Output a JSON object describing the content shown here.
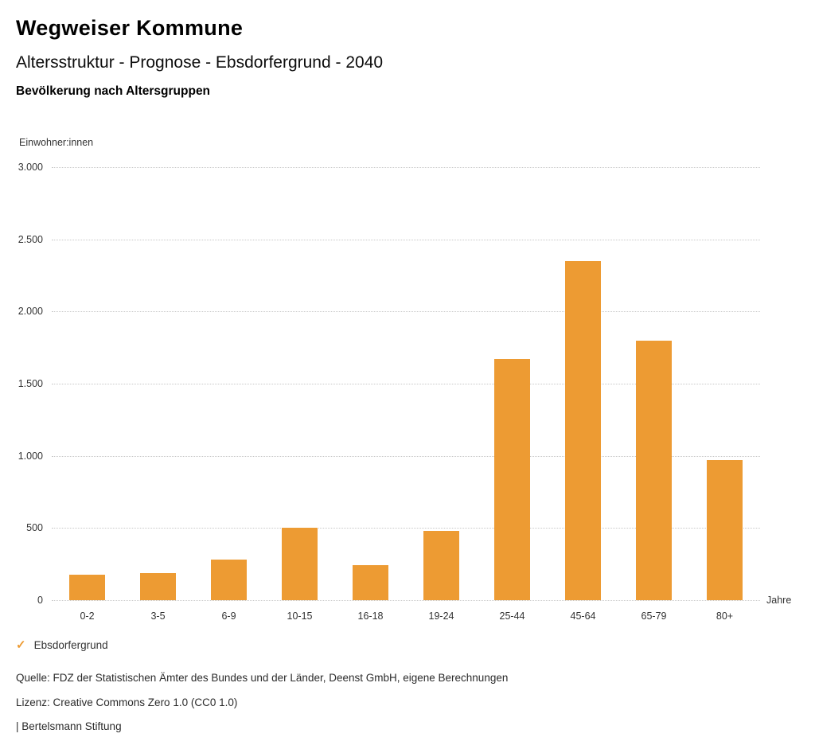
{
  "header": {
    "title": "Wegweiser Kommune",
    "subtitle": "Altersstruktur - Prognose - Ebsdorfergrund - 2040",
    "chart_heading": "Bevölkerung nach Altersgruppen"
  },
  "chart_data": {
    "type": "bar",
    "title": "Bevölkerung nach Altersgruppen",
    "y_axis_label": "Einwohner:innen",
    "x_axis_label": "Jahre",
    "categories": [
      "0-2",
      "3-5",
      "6-9",
      "10-15",
      "16-18",
      "19-24",
      "25-44",
      "45-64",
      "65-79",
      "80+"
    ],
    "series": [
      {
        "name": "Ebsdorfergrund",
        "values": [
          175,
          190,
          280,
          500,
          245,
          480,
          1670,
          2350,
          1800,
          970
        ]
      }
    ],
    "ylim": [
      0,
      3000
    ],
    "y_ticks": [
      0,
      500,
      1000,
      1500,
      2000,
      2500,
      3000
    ],
    "y_tick_labels": [
      "0",
      "500",
      "1.000",
      "1.500",
      "2.000",
      "2.500",
      "3.000"
    ],
    "bar_color": "#ED9B33",
    "grid": true,
    "legend_position": "bottom"
  },
  "legend": {
    "items": [
      {
        "label": "Ebsdorfergrund",
        "color": "#ED9B33",
        "marker": "check-icon"
      }
    ]
  },
  "footer": {
    "source": "Quelle: FDZ der Statistischen Ämter des Bundes und der Länder, Deenst GmbH, eigene Berechnungen",
    "license": "Lizenz: Creative Commons Zero 1.0 (CC0 1.0)",
    "attribution": "| Bertelsmann Stiftung"
  }
}
